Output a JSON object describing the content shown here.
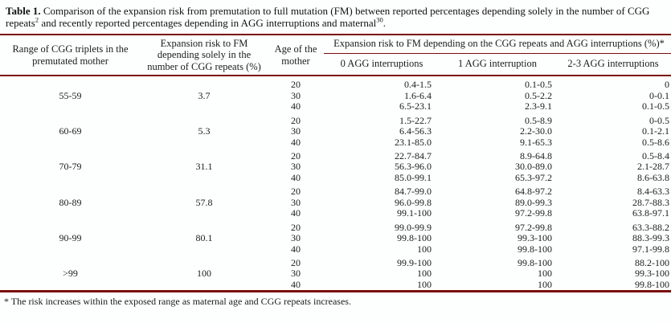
{
  "title": {
    "label": "Table 1.",
    "part1": " Comparison of the expansion risk from premutation to full mutation (FM) between reported percentages depending solely in the number of CGG repeats",
    "sup1": "2",
    "part2": " and recently reported percentages depending in AGG interruptions and maternal",
    "sup2": "30",
    "part3": "."
  },
  "columns": {
    "range": "Range of CGG triplets in the premutated mother",
    "risk_cgg": "Expansion risk to FM depending solely in the number of CGG repeats (%)",
    "age": "Age of the mother",
    "agg_group": "Expansion risk to FM depending on the CGG repeats and AGG interruptions (%)*",
    "agg0": "0 AGG interruptions",
    "agg1": "1 AGG interruption",
    "agg23": "2-3 AGG interruptions"
  },
  "groups": [
    {
      "range": "55-59",
      "risk": "3.7",
      "rows": [
        {
          "age": "20",
          "agg0": "0.4-1.5",
          "agg1": "0.1-0.5",
          "agg23": "0"
        },
        {
          "age": "30",
          "agg0": "1.6-6.4",
          "agg1": "0.5-2.2",
          "agg23": "0-0.1"
        },
        {
          "age": "40",
          "agg0": "6.5-23.1",
          "agg1": "2.3-9.1",
          "agg23": "0.1-0.5"
        }
      ]
    },
    {
      "range": "60-69",
      "risk": "5.3",
      "rows": [
        {
          "age": "20",
          "agg0": "1.5-22.7",
          "agg1": "0.5-8.9",
          "agg23": "0-0.5"
        },
        {
          "age": "30",
          "agg0": "6.4-56.3",
          "agg1": "2.2-30.0",
          "agg23": "0.1-2.1"
        },
        {
          "age": "40",
          "agg0": "23.1-85.0",
          "agg1": "9.1-65.3",
          "agg23": "0.5-8.6"
        }
      ]
    },
    {
      "range": "70-79",
      "risk": "31.1",
      "rows": [
        {
          "age": "20",
          "agg0": "22.7-84.7",
          "agg1": "8.9-64.8",
          "agg23": "0.5-8.4"
        },
        {
          "age": "30",
          "agg0": "56.3-96.0",
          "agg1": "30.0-89.0",
          "agg23": "2.1-28.7"
        },
        {
          "age": "40",
          "agg0": "85.0-99.1",
          "agg1": "65.3-97.2",
          "agg23": "8.6-63.8"
        }
      ]
    },
    {
      "range": "80-89",
      "risk": "57.8",
      "rows": [
        {
          "age": "20",
          "agg0": "84.7-99.0",
          "agg1": "64.8-97.2",
          "agg23": "8.4-63.3"
        },
        {
          "age": "30",
          "agg0": "96.0-99.8",
          "agg1": "89.0-99.3",
          "agg23": "28.7-88.3"
        },
        {
          "age": "40",
          "agg0": "99.1-100",
          "agg1": "97.2-99.8",
          "agg23": "63.8-97.1"
        }
      ]
    },
    {
      "range": "90-99",
      "risk": "80.1",
      "rows": [
        {
          "age": "20",
          "agg0": "99.0-99.9",
          "agg1": "97.2-99.8",
          "agg23": "63.3-88.2"
        },
        {
          "age": "30",
          "agg0": "99.8-100",
          "agg1": "99.3-100",
          "agg23": "88.3-99.3"
        },
        {
          "age": "40",
          "agg0": "100",
          "agg1": "99.8-100",
          "agg23": "97.1-99.8"
        }
      ]
    },
    {
      "range": ">99",
      "risk": "100",
      "rows": [
        {
          "age": "20",
          "agg0": "99.9-100",
          "agg1": "99.8-100",
          "agg23": "88.2-100"
        },
        {
          "age": "30",
          "agg0": "100",
          "agg1": "100",
          "agg23": "99.3-100"
        },
        {
          "age": "40",
          "agg0": "100",
          "agg1": "100",
          "agg23": "99.8-100"
        }
      ]
    }
  ],
  "footnote": "* The risk increases within the exposed range as maternal age and CGG repeats increases.",
  "colors": {
    "rule": "#7b0d0d",
    "text": "#1b1b1b",
    "background": "#fdfefe"
  }
}
